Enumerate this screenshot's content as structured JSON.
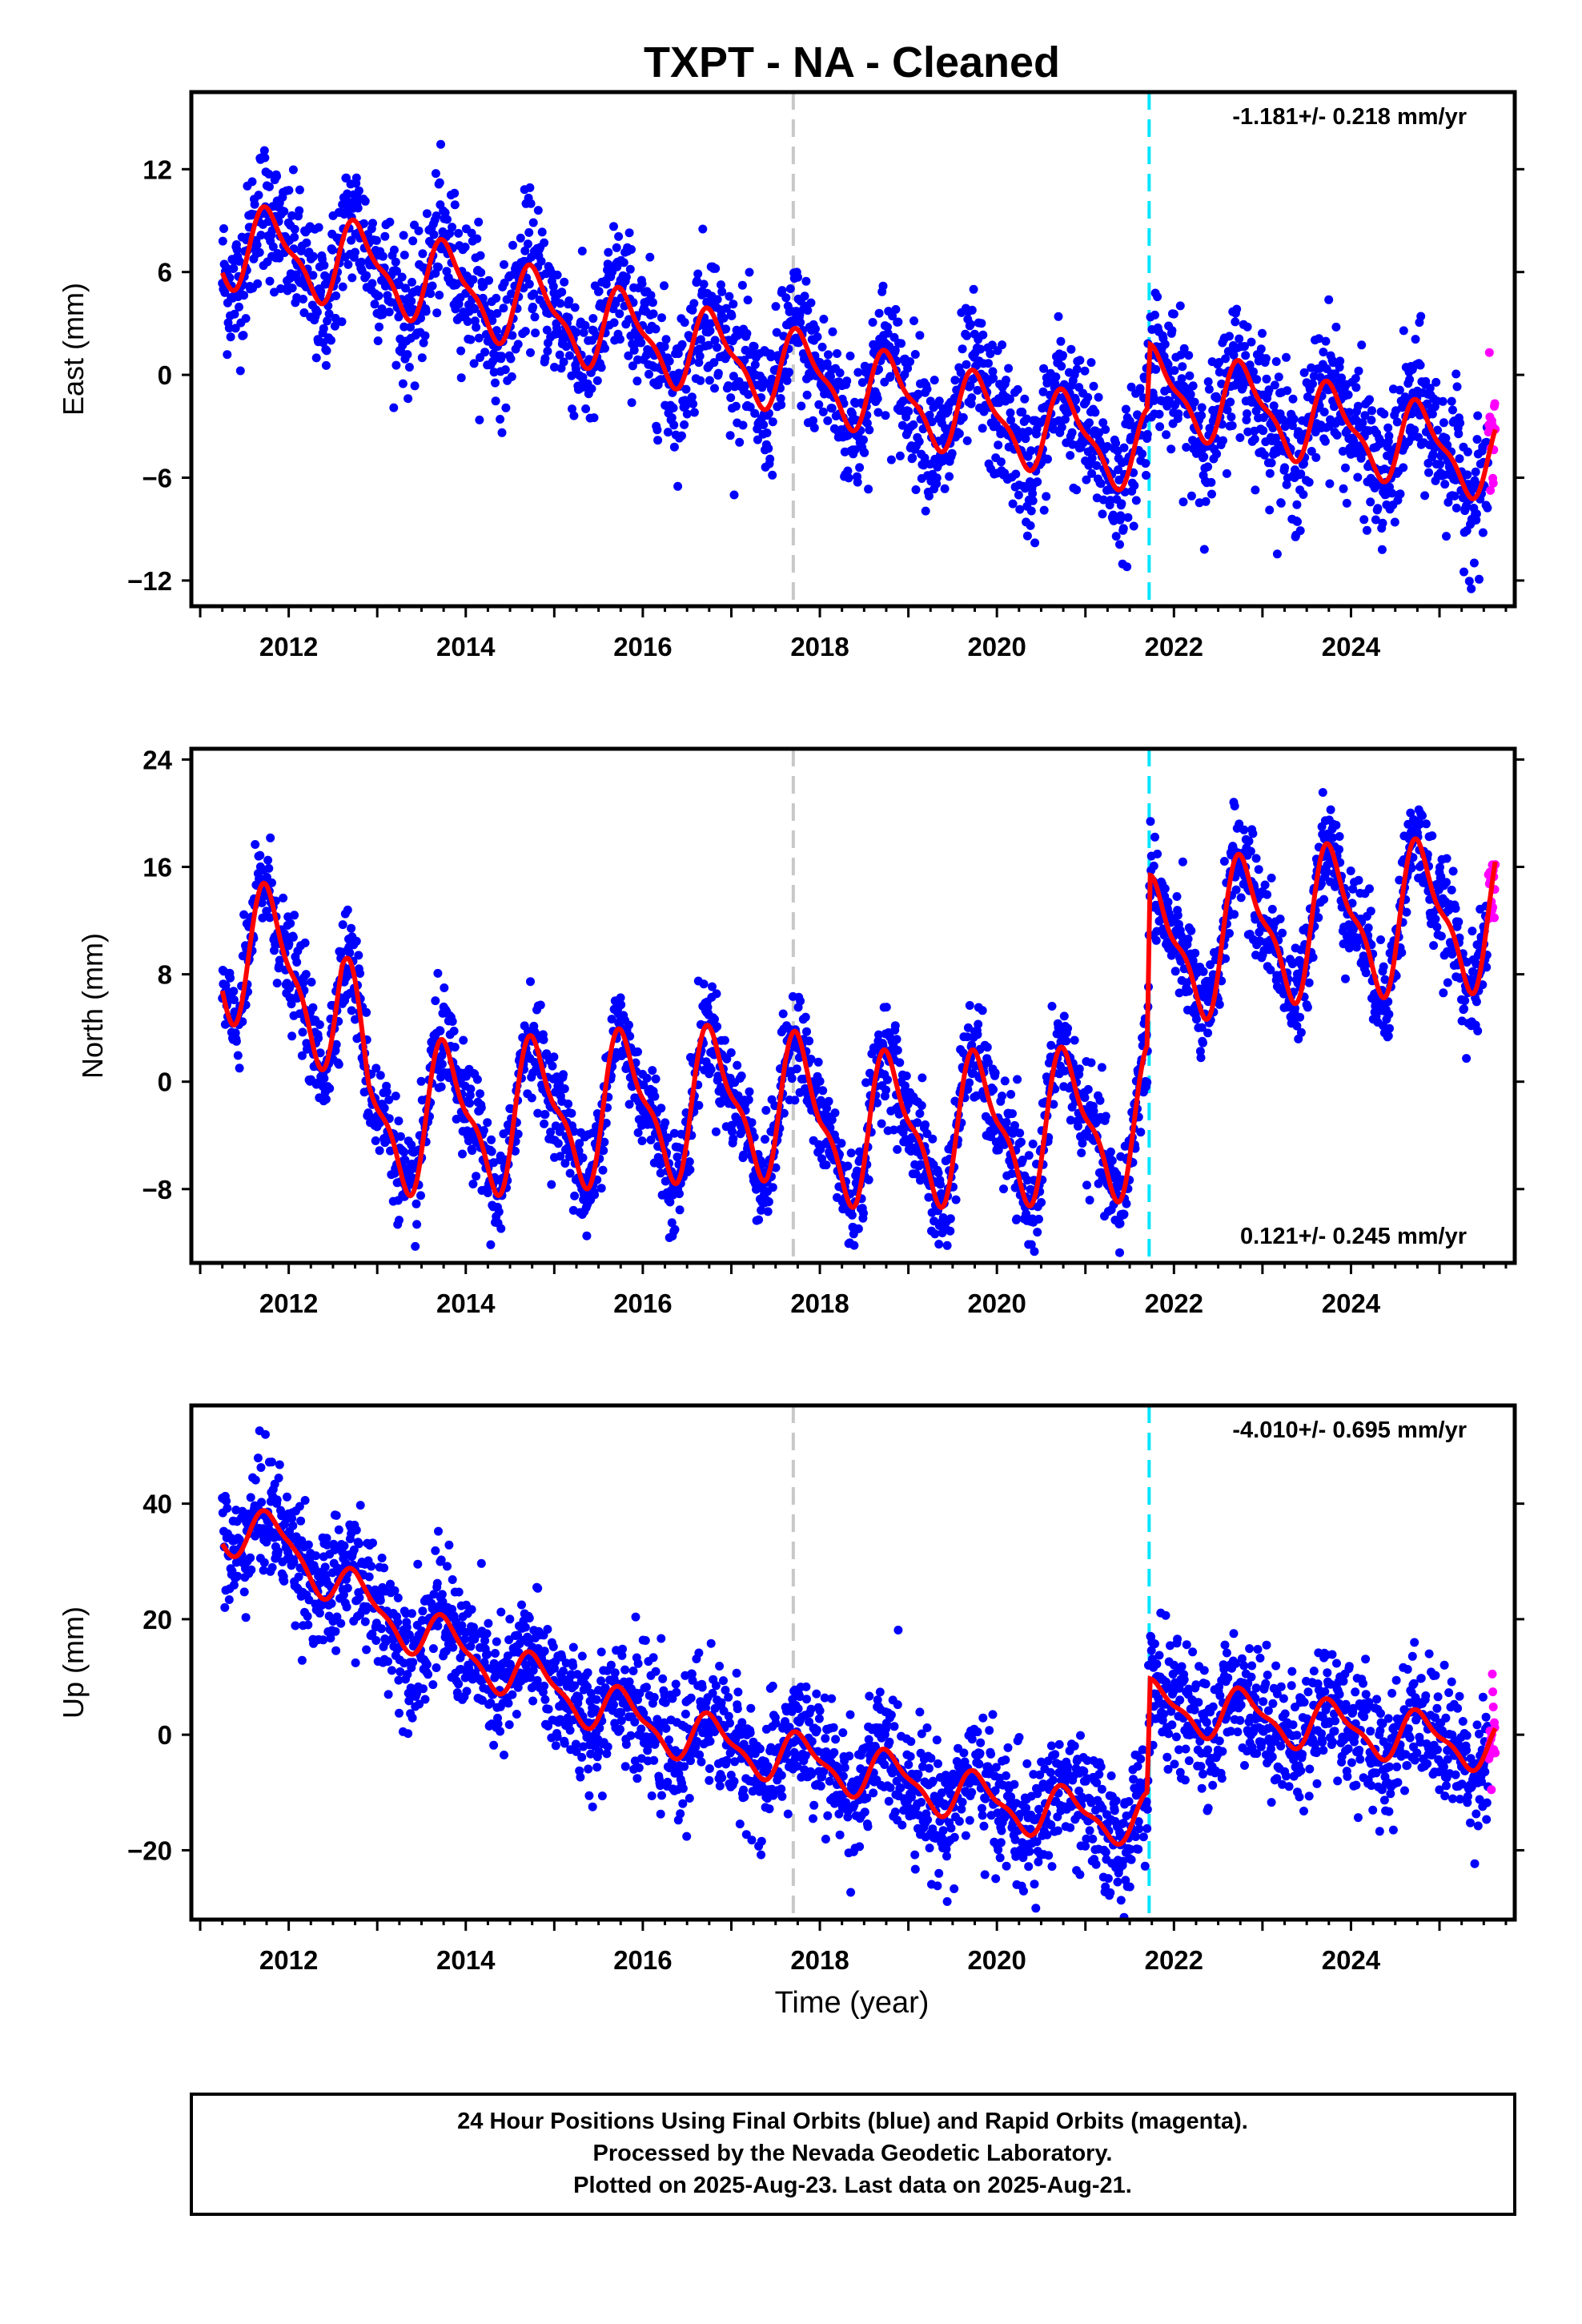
{
  "title": "TXPT  - NA - Cleaned",
  "xlabel": "Time (year)",
  "colors": {
    "final": "#0000ff",
    "rapid": "#ff00ff",
    "model": "#ff0000",
    "event_gray": "#c8c8c8",
    "event_cyan": "#00e5ff"
  },
  "footer": {
    "line1": "24 Hour Positions Using Final Orbits (blue) and Rapid Orbits (magenta).",
    "line2": "Processed by the Nevada Geodetic Laboratory.",
    "line3": "Plotted on 2025-Aug-23. Last data on 2025-Aug-21."
  },
  "chart_data": [
    {
      "type": "scatter",
      "ylabel": "East (mm)",
      "rate_label": "-1.181+/- 0.218 mm/yr",
      "rate_position": "top-right",
      "xlim": [
        2010.9,
        2025.85
      ],
      "ylim": [
        -13.5,
        16.5
      ],
      "xticks": [
        2012,
        2014,
        2016,
        2018,
        2020,
        2022,
        2024
      ],
      "yticks": [
        12,
        6,
        0,
        -6,
        -12
      ],
      "ytick_labels": [
        "12",
        "6",
        "0",
        "−6",
        "−12"
      ],
      "event_lines": [
        2017.7,
        2021.72
      ],
      "series": {
        "start": 2011.25,
        "end": 2025.63,
        "rapid_start": 2025.55,
        "trend": [
          [
            2011.25,
            7.6
          ],
          [
            2012.8,
            6.4
          ],
          [
            2014.0,
            5.0
          ],
          [
            2015.0,
            3.4
          ],
          [
            2016.0,
            2.2
          ],
          [
            2017.0,
            1.0
          ],
          [
            2018.0,
            -0.2
          ],
          [
            2019.0,
            -1.5
          ],
          [
            2020.0,
            -2.6
          ],
          [
            2021.0,
            -3.7
          ],
          [
            2021.7,
            -4.5
          ],
          [
            2021.73,
            -0.8
          ],
          [
            2023.0,
            -2.0
          ],
          [
            2024.0,
            -3.3
          ],
          [
            2025.63,
            -4.9
          ]
        ],
        "annual_amp": 2.2,
        "annual_phase": 0.55,
        "scatter": 2.0
      }
    },
    {
      "type": "scatter",
      "ylabel": "North (mm)",
      "rate_label": "0.121+/- 0.245 mm/yr",
      "rate_position": "bottom-right",
      "xlim": [
        2010.9,
        2025.85
      ],
      "ylim": [
        -13.5,
        24.8
      ],
      "xticks": [
        2012,
        2014,
        2016,
        2018,
        2020,
        2022,
        2024
      ],
      "yticks": [
        24,
        16,
        8,
        0,
        -8
      ],
      "ytick_labels": [
        "24",
        "16",
        "8",
        "0",
        "−8"
      ],
      "event_lines": [
        2017.7,
        2021.72
      ],
      "series": {
        "start": 2011.25,
        "end": 2025.63,
        "rapid_start": 2025.55,
        "trend": [
          [
            2011.25,
            10.5
          ],
          [
            2012.0,
            8.0
          ],
          [
            2012.6,
            6.0
          ],
          [
            2012.9,
            -2.5
          ],
          [
            2014.0,
            -2.8
          ],
          [
            2016.0,
            -1.8
          ],
          [
            2017.6,
            -1.5
          ],
          [
            2018.0,
            -3.5
          ],
          [
            2020.0,
            -3.5
          ],
          [
            2021.7,
            -3.0
          ],
          [
            2021.73,
            9.5
          ],
          [
            2023.0,
            11.5
          ],
          [
            2024.0,
            12.0
          ],
          [
            2025.63,
            12.5
          ]
        ],
        "annual_amp": 5.0,
        "annual_phase": 0.55,
        "scatter": 1.9
      }
    },
    {
      "type": "scatter",
      "ylabel": "Up (mm)",
      "rate_label": "-4.010+/- 0.695 mm/yr",
      "rate_position": "top-right",
      "xlim": [
        2010.9,
        2025.85
      ],
      "ylim": [
        -32,
        57
      ],
      "xticks": [
        2012,
        2014,
        2016,
        2018,
        2020,
        2022,
        2024
      ],
      "yticks": [
        40,
        20,
        0,
        -20
      ],
      "ytick_labels": [
        "40",
        "20",
        "0",
        "−20"
      ],
      "event_lines": [
        2017.7,
        2021.72
      ],
      "series": {
        "start": 2011.25,
        "end": 2025.63,
        "rapid_start": 2025.55,
        "trend": [
          [
            2011.25,
            36.0
          ],
          [
            2012.0,
            33.0
          ],
          [
            2012.8,
            23.0
          ],
          [
            2014.0,
            14.0
          ],
          [
            2015.0,
            8.0
          ],
          [
            2016.0,
            2.0
          ],
          [
            2017.0,
            -2.0
          ],
          [
            2018.0,
            -5.0
          ],
          [
            2019.0,
            -8.0
          ],
          [
            2020.0,
            -12.0
          ],
          [
            2021.0,
            -14.0
          ],
          [
            2021.7,
            -14.5
          ],
          [
            2021.73,
            5.0
          ],
          [
            2023.0,
            3.0
          ],
          [
            2024.0,
            1.0
          ],
          [
            2025.63,
            -2.0
          ]
        ],
        "annual_amp": 4.0,
        "annual_phase": 0.55,
        "scatter": 5.5
      }
    }
  ]
}
